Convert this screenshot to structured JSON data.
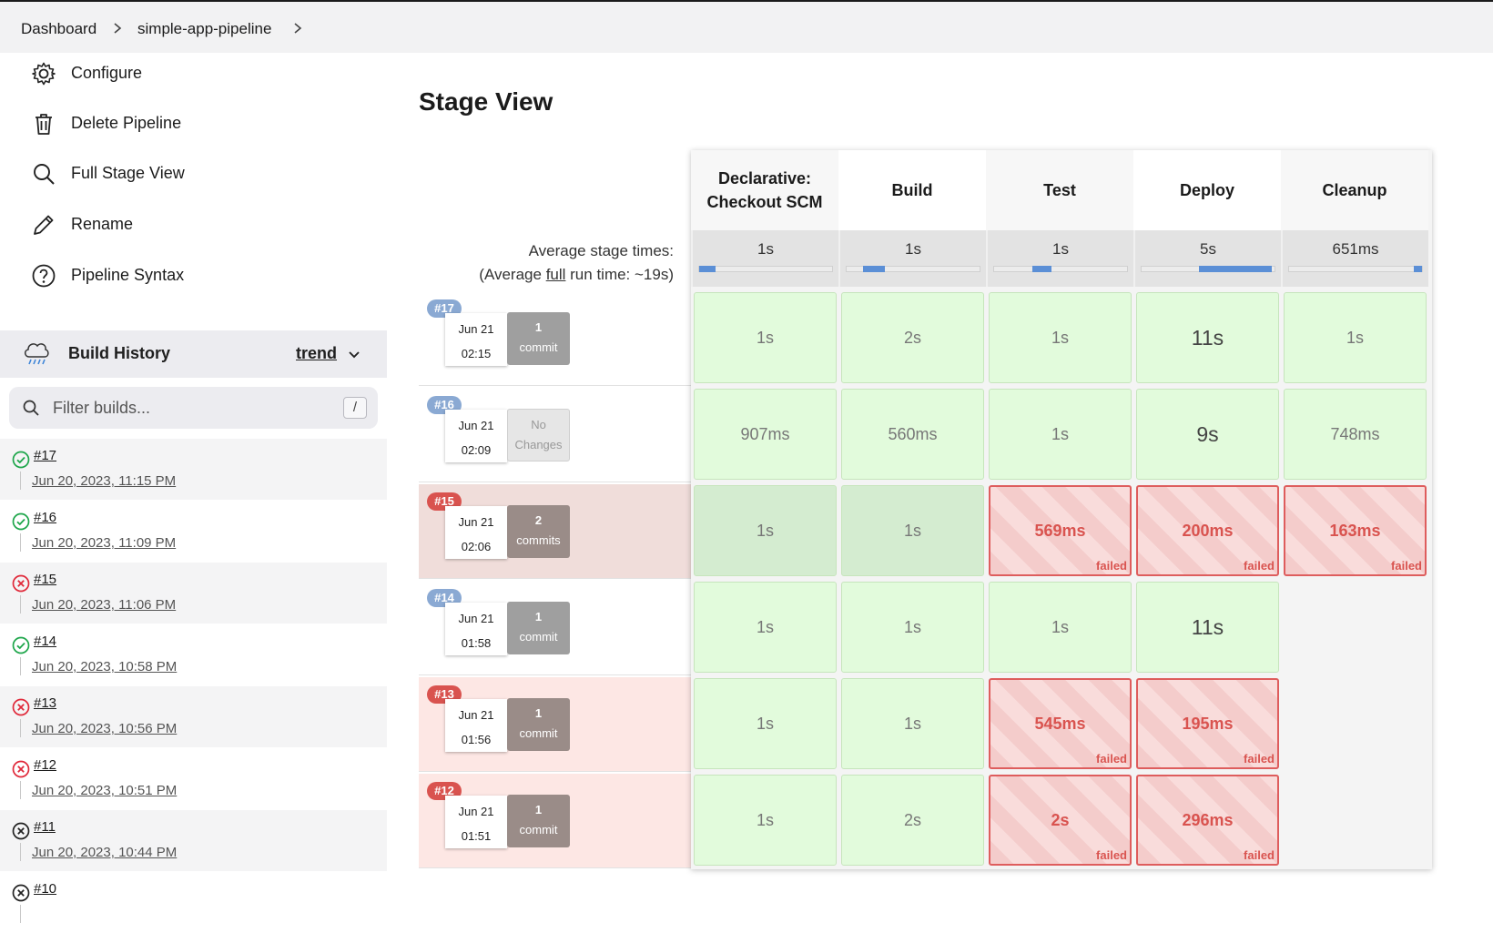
{
  "breadcrumb": {
    "items": [
      "Dashboard",
      "simple-app-pipeline"
    ]
  },
  "sidebar": {
    "tasks": [
      {
        "label": "Configure",
        "icon": "gear-icon"
      },
      {
        "label": "Delete Pipeline",
        "icon": "trash-icon"
      },
      {
        "label": "Full Stage View",
        "icon": "search-icon"
      },
      {
        "label": "Rename",
        "icon": "pencil-icon"
      },
      {
        "label": "Pipeline Syntax",
        "icon": "help-circle-icon"
      }
    ]
  },
  "build_history": {
    "title": "Build History",
    "trend_label": "trend",
    "filter_placeholder": "Filter builds...",
    "filter_shortcut": "/",
    "builds": [
      {
        "number": "#17",
        "date": "Jun 20, 2023, 11:15 PM",
        "status": "success"
      },
      {
        "number": "#16",
        "date": "Jun 20, 2023, 11:09 PM",
        "status": "success"
      },
      {
        "number": "#15",
        "date": "Jun 20, 2023, 11:06 PM",
        "status": "failed"
      },
      {
        "number": "#14",
        "date": "Jun 20, 2023, 10:58 PM",
        "status": "success"
      },
      {
        "number": "#13",
        "date": "Jun 20, 2023, 10:56 PM",
        "status": "failed"
      },
      {
        "number": "#12",
        "date": "Jun 20, 2023, 10:51 PM",
        "status": "failed"
      },
      {
        "number": "#11",
        "date": "Jun 20, 2023, 10:44 PM",
        "status": "aborted"
      },
      {
        "number": "#10",
        "date": "",
        "status": "aborted"
      }
    ]
  },
  "stage_view": {
    "title": "Stage View",
    "avg_label": "Average stage times:",
    "avg_full_prefix": "(Average ",
    "avg_full_link": "full",
    "avg_full_suffix": " run time: ~19s)",
    "stages": [
      {
        "name": "Declarative: Checkout SCM",
        "avg": "1s",
        "avg_bar_start": 0.0,
        "avg_bar_fraction": 0.12
      },
      {
        "name": "Build",
        "avg": "1s",
        "avg_bar_start": 0.12,
        "avg_bar_fraction": 0.17
      },
      {
        "name": "Test",
        "avg": "1s",
        "avg_bar_start": 0.29,
        "avg_bar_fraction": 0.14
      },
      {
        "name": "Deploy",
        "avg": "5s",
        "avg_bar_start": 0.43,
        "avg_bar_fraction": 0.55
      },
      {
        "name": "Cleanup",
        "avg": "651ms",
        "avg_bar_start": 0.98,
        "avg_bar_fraction": 0.06
      }
    ],
    "runs": [
      {
        "number": "#17",
        "date": "Jun 21",
        "time": "02:15",
        "changes_1": "1",
        "changes_2": "commit",
        "status": "success",
        "cells": [
          {
            "text": "1s",
            "state": "success"
          },
          {
            "text": "2s",
            "state": "success"
          },
          {
            "text": "1s",
            "state": "success"
          },
          {
            "text": "11s",
            "state": "success"
          },
          {
            "text": "1s",
            "state": "success"
          }
        ]
      },
      {
        "number": "#16",
        "date": "Jun 21",
        "time": "02:09",
        "changes_1": "No",
        "changes_2": "Changes",
        "status": "success",
        "cells": [
          {
            "text": "907ms",
            "state": "success"
          },
          {
            "text": "560ms",
            "state": "success"
          },
          {
            "text": "1s",
            "state": "success"
          },
          {
            "text": "9s",
            "state": "success"
          },
          {
            "text": "748ms",
            "state": "success"
          }
        ]
      },
      {
        "number": "#15",
        "date": "Jun 21",
        "time": "02:06",
        "changes_1": "2",
        "changes_2": "commits",
        "status": "failed",
        "cells": [
          {
            "text": "1s",
            "state": "success"
          },
          {
            "text": "1s",
            "state": "success"
          },
          {
            "text": "569ms",
            "state": "failed"
          },
          {
            "text": "200ms",
            "state": "failed"
          },
          {
            "text": "163ms",
            "state": "failed"
          }
        ]
      },
      {
        "number": "#14",
        "date": "Jun 21",
        "time": "01:58",
        "changes_1": "1",
        "changes_2": "commit",
        "status": "success",
        "cells": [
          {
            "text": "1s",
            "state": "success"
          },
          {
            "text": "1s",
            "state": "success"
          },
          {
            "text": "1s",
            "state": "success"
          },
          {
            "text": "11s",
            "state": "success"
          },
          {
            "text": "",
            "state": "empty"
          }
        ]
      },
      {
        "number": "#13",
        "date": "Jun 21",
        "time": "01:56",
        "changes_1": "1",
        "changes_2": "commit",
        "status": "failed",
        "cells": [
          {
            "text": "1s",
            "state": "success"
          },
          {
            "text": "1s",
            "state": "success"
          },
          {
            "text": "545ms",
            "state": "failed"
          },
          {
            "text": "195ms",
            "state": "failed"
          },
          {
            "text": "",
            "state": "empty"
          }
        ]
      },
      {
        "number": "#12",
        "date": "Jun 21",
        "time": "01:51",
        "changes_1": "1",
        "changes_2": "commit",
        "status": "failed",
        "cells": [
          {
            "text": "1s",
            "state": "success"
          },
          {
            "text": "2s",
            "state": "success"
          },
          {
            "text": "2s",
            "state": "failed"
          },
          {
            "text": "296ms",
            "state": "failed"
          },
          {
            "text": "",
            "state": "empty"
          }
        ]
      }
    ],
    "failed_label": "failed"
  },
  "colors": {
    "success_cell": "#e2fbdc",
    "failed_border": "#de5d5d",
    "badge_success": "#8aa9d3",
    "badge_failed": "#d9534f",
    "success_icon": "#1ea64b",
    "failed_icon": "#e0293a"
  }
}
